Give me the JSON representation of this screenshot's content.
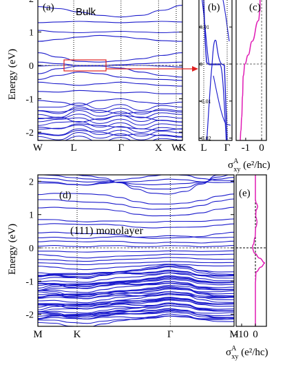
{
  "colors": {
    "band": "#1a1acc",
    "ahc": "#e01ab4",
    "arrow": "#e02020",
    "axis": "#000000"
  },
  "chart_data": [
    {
      "panel": "(a)",
      "type": "line",
      "annotation": "Bulk",
      "ylabel": "Energy (eV)",
      "ylim": [
        -2.3,
        2.0
      ],
      "yticks": [
        "2",
        "1",
        "0",
        "-1",
        "-2"
      ],
      "yvals": [
        2,
        1,
        0,
        -1,
        -2
      ],
      "kpoints": [
        "W",
        "L",
        "Γ",
        "X",
        "W",
        "K"
      ],
      "kpos": [
        0,
        0.248,
        0.575,
        0.835,
        0.957,
        1.0
      ],
      "fermi_level": 0,
      "bands": [
        [
          1.76,
          1.7,
          1.6,
          1.5,
          1.45,
          1.5,
          1.65,
          1.8
        ],
        [
          1.28,
          1.3,
          1.32,
          1.3,
          1.28,
          1.3,
          1.32,
          1.3
        ],
        [
          1.05,
          1.0,
          0.98,
          1.0,
          1.02,
          1.0,
          0.98,
          1.0
        ],
        [
          0.72,
          0.78,
          0.85,
          0.9,
          0.86,
          0.8,
          0.74,
          0.72
        ],
        [
          0.38,
          0.25,
          0.12,
          0.1,
          0.14,
          0.2,
          0.3,
          0.38
        ],
        [
          0.1,
          0.05,
          0.0,
          0.0,
          0.02,
          0.05,
          0.08,
          0.1
        ],
        [
          -0.02,
          0.0,
          0.0,
          0.0,
          0.0,
          0.0,
          -0.02,
          -0.05
        ],
        [
          -0.25,
          -0.1,
          -0.02,
          -0.02,
          -0.08,
          -0.2,
          -0.3,
          -0.35
        ],
        [
          -0.42,
          -0.3,
          -0.2,
          -0.25,
          -0.35,
          -0.4,
          -0.42,
          -0.45
        ],
        [
          -0.5,
          -0.55,
          -0.6,
          -0.55,
          -0.5,
          -0.55,
          -0.6,
          -0.62
        ],
        [
          -0.78,
          -0.8,
          -0.75,
          -0.78,
          -0.82,
          -0.8,
          -0.85,
          -0.85
        ],
        [
          -1.05,
          -1.1,
          -1.2,
          -1.05,
          -1.0,
          -1.1,
          -1.15,
          -1.1
        ],
        [
          -1.35,
          -1.4,
          -1.3,
          -1.35,
          -1.45,
          -1.4,
          -1.35,
          -1.4
        ],
        [
          -1.6,
          -1.55,
          -1.7,
          -1.6,
          -1.5,
          -1.55,
          -1.65,
          -1.7
        ],
        [
          -1.85,
          -1.9,
          -1.75,
          -1.8,
          -1.85,
          -1.9,
          -1.95,
          -1.9
        ],
        [
          -2.05,
          -2.1,
          -1.95,
          -2.0,
          -2.1,
          -2.05,
          -2.1,
          -2.15
        ]
      ]
    },
    {
      "panel": "(b)",
      "type": "line",
      "ylim": [
        -0.02,
        0.02
      ],
      "yticks": [
        "0.01",
        "0",
        "-0.01",
        "-0.02"
      ],
      "yvals": [
        0.01,
        0,
        -0.01,
        -0.02
      ],
      "kpoints": [
        "L",
        "Γ"
      ],
      "kpos": [
        0.15,
        0.85
      ],
      "fermi_level": 0
    },
    {
      "panel": "(c)",
      "type": "line",
      "xlabel": "σ",
      "xlabel_super": "A",
      "xlabel_sub": "xy",
      "xlabel_unit": " (e²/hc)",
      "xticks": [
        "-1",
        "0"
      ],
      "xvals": [
        -1,
        0
      ],
      "xlim": [
        -1.6,
        0.3
      ]
    },
    {
      "panel": "(d)",
      "type": "line",
      "annotation": "(111) monolayer",
      "ylabel": "Energy (eV)",
      "ylim": [
        -2.3,
        2.35
      ],
      "yticks": [
        "2",
        "1",
        "0",
        "-1",
        "-2"
      ],
      "yvals": [
        2,
        1,
        0,
        -1,
        -2
      ],
      "kpoints": [
        "M",
        "K",
        "Γ",
        "M"
      ],
      "kpos": [
        0,
        0.2,
        0.675,
        1.0
      ],
      "fermi_level": 0
    },
    {
      "panel": "(e)",
      "type": "line",
      "xlabel": "σ",
      "xlabel_super": "A",
      "xlabel_sub": "xy",
      "xlabel_unit": " (e²/hc)",
      "xticks": [
        "-10",
        "0"
      ],
      "xvals": [
        -10,
        0
      ],
      "xlim": [
        -14,
        8
      ]
    }
  ]
}
